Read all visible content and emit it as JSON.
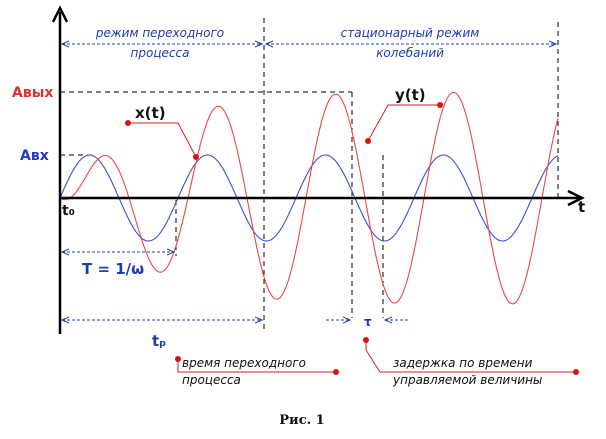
{
  "labels": {
    "transient_mode": [
      "режим переходного",
      "процесса"
    ],
    "steady_mode": [
      "стационарный режим",
      "колебаний"
    ],
    "a_out": "Aвых",
    "a_in": "Aвх",
    "x_t": "x(t)",
    "y_t": "y(t)",
    "t_axis": "t",
    "t0": "t₀",
    "period": "T = 1/ω",
    "tau": "τ",
    "tp": "tₚ",
    "transient_time": [
      "время переходного",
      "процесса"
    ],
    "delay": [
      "задержка по времени",
      "управляемой величины"
    ],
    "caption": "Рис. 1"
  },
  "colors": {
    "input_signal": "#3a4fd6",
    "output_signal": "#ee4444",
    "axis": "#000000",
    "annotation_blue": "#1f3bb0",
    "marker": "#e01010"
  }
}
